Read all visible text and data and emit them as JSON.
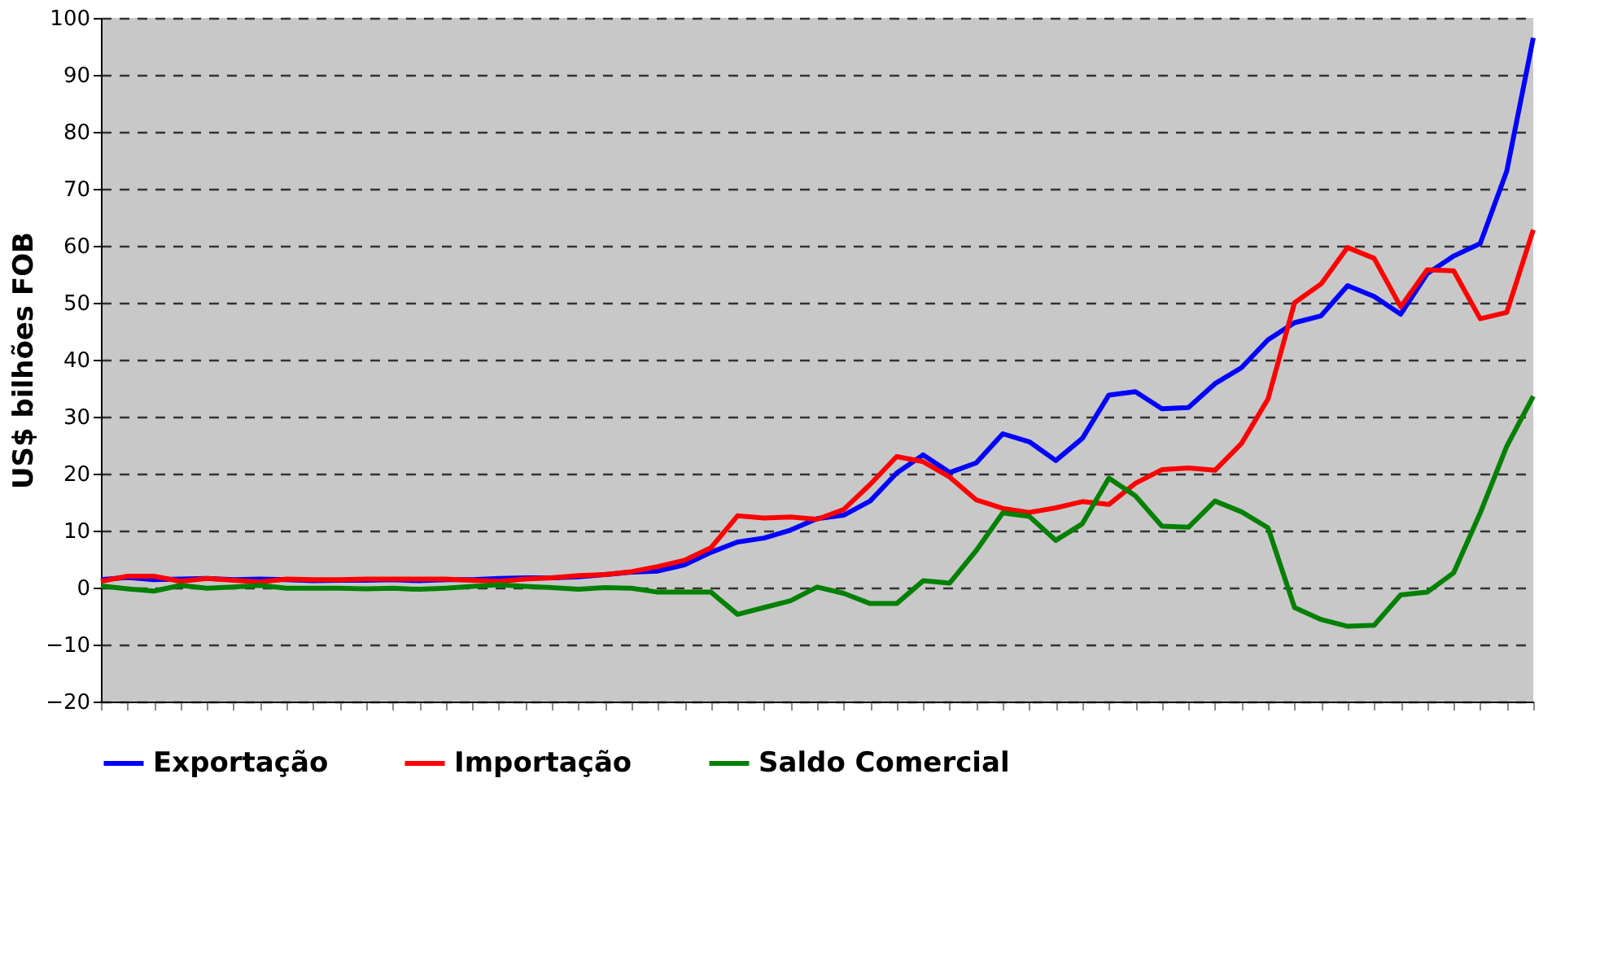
{
  "chart_data": {
    "type": "line",
    "ylabel": "US$ bilhões  FOB",
    "categories": [
      null,
      null,
      null,
      null,
      null,
      null,
      null,
      null,
      null,
      null,
      null,
      null,
      null,
      null,
      null,
      null,
      null,
      null,
      null,
      null,
      null,
      null,
      null,
      null,
      null,
      null,
      null,
      null,
      null,
      null,
      null,
      null,
      null,
      null,
      null,
      null,
      null,
      null,
      null,
      null,
      null,
      null,
      null,
      null,
      null,
      null,
      null,
      null,
      null,
      null,
      null,
      null,
      null,
      null,
      null
    ],
    "series": [
      {
        "name": "Exportação",
        "color": "#0000ff",
        "values": [
          1.4,
          1.8,
          1.4,
          1.5,
          1.6,
          1.4,
          1.5,
          1.4,
          1.2,
          1.3,
          1.3,
          1.4,
          1.2,
          1.4,
          1.4,
          1.6,
          1.7,
          1.7,
          1.9,
          2.3,
          2.7,
          2.9,
          4.0,
          6.2,
          8.0,
          8.7,
          10.1,
          12.1,
          12.7,
          15.2,
          20.1,
          23.3,
          20.2,
          21.9,
          27.0,
          25.6,
          22.3,
          26.2,
          33.8,
          34.4,
          31.4,
          31.6,
          35.8,
          38.6,
          43.5,
          46.5,
          47.7,
          53.0,
          51.1,
          48.0,
          55.1,
          58.2,
          60.4,
          73.1,
          96.5
        ]
      },
      {
        "name": "Importação",
        "color": "#ff0000",
        "values": [
          1.1,
          2.0,
          2.0,
          1.1,
          1.6,
          1.3,
          1.0,
          1.5,
          1.4,
          1.4,
          1.5,
          1.5,
          1.5,
          1.5,
          1.3,
          1.1,
          1.5,
          1.7,
          2.1,
          2.3,
          2.8,
          3.7,
          4.8,
          7.0,
          12.6,
          12.2,
          12.4,
          12.0,
          13.7,
          18.1,
          23.0,
          22.1,
          19.4,
          15.4,
          13.9,
          13.2,
          14.0,
          15.1,
          14.6,
          18.3,
          20.7,
          21.0,
          20.6,
          25.3,
          33.1,
          50.0,
          53.3,
          59.7,
          57.8,
          49.3,
          55.8,
          55.6,
          47.2,
          48.3,
          62.8
        ]
      },
      {
        "name": "Saldo Comercial",
        "color": "#008000",
        "values": [
          0.3,
          -0.2,
          -0.6,
          0.4,
          -0.1,
          0.1,
          0.4,
          -0.1,
          -0.1,
          -0.1,
          -0.2,
          -0.1,
          -0.3,
          -0.1,
          0.2,
          0.5,
          0.2,
          0.0,
          -0.3,
          0.0,
          -0.1,
          -0.8,
          -0.8,
          -0.8,
          -4.7,
          -3.5,
          -2.3,
          0.1,
          -1.0,
          -2.8,
          -2.8,
          1.2,
          0.8,
          6.5,
          13.1,
          12.5,
          8.3,
          11.2,
          19.2,
          16.1,
          10.8,
          10.6,
          15.2,
          13.3,
          10.5,
          -3.5,
          -5.6,
          -6.8,
          -6.6,
          -1.3,
          -0.8,
          2.6,
          13.1,
          24.8,
          33.6
        ]
      }
    ],
    "ylim": [
      -20,
      100
    ],
    "yticks": [
      -20,
      -10,
      0,
      10,
      20,
      30,
      40,
      50,
      60,
      70,
      80,
      90,
      100
    ],
    "grid": "y",
    "legend": "bottom",
    "tick_labels": "y",
    "marker": "none",
    "line_style": "solid"
  }
}
